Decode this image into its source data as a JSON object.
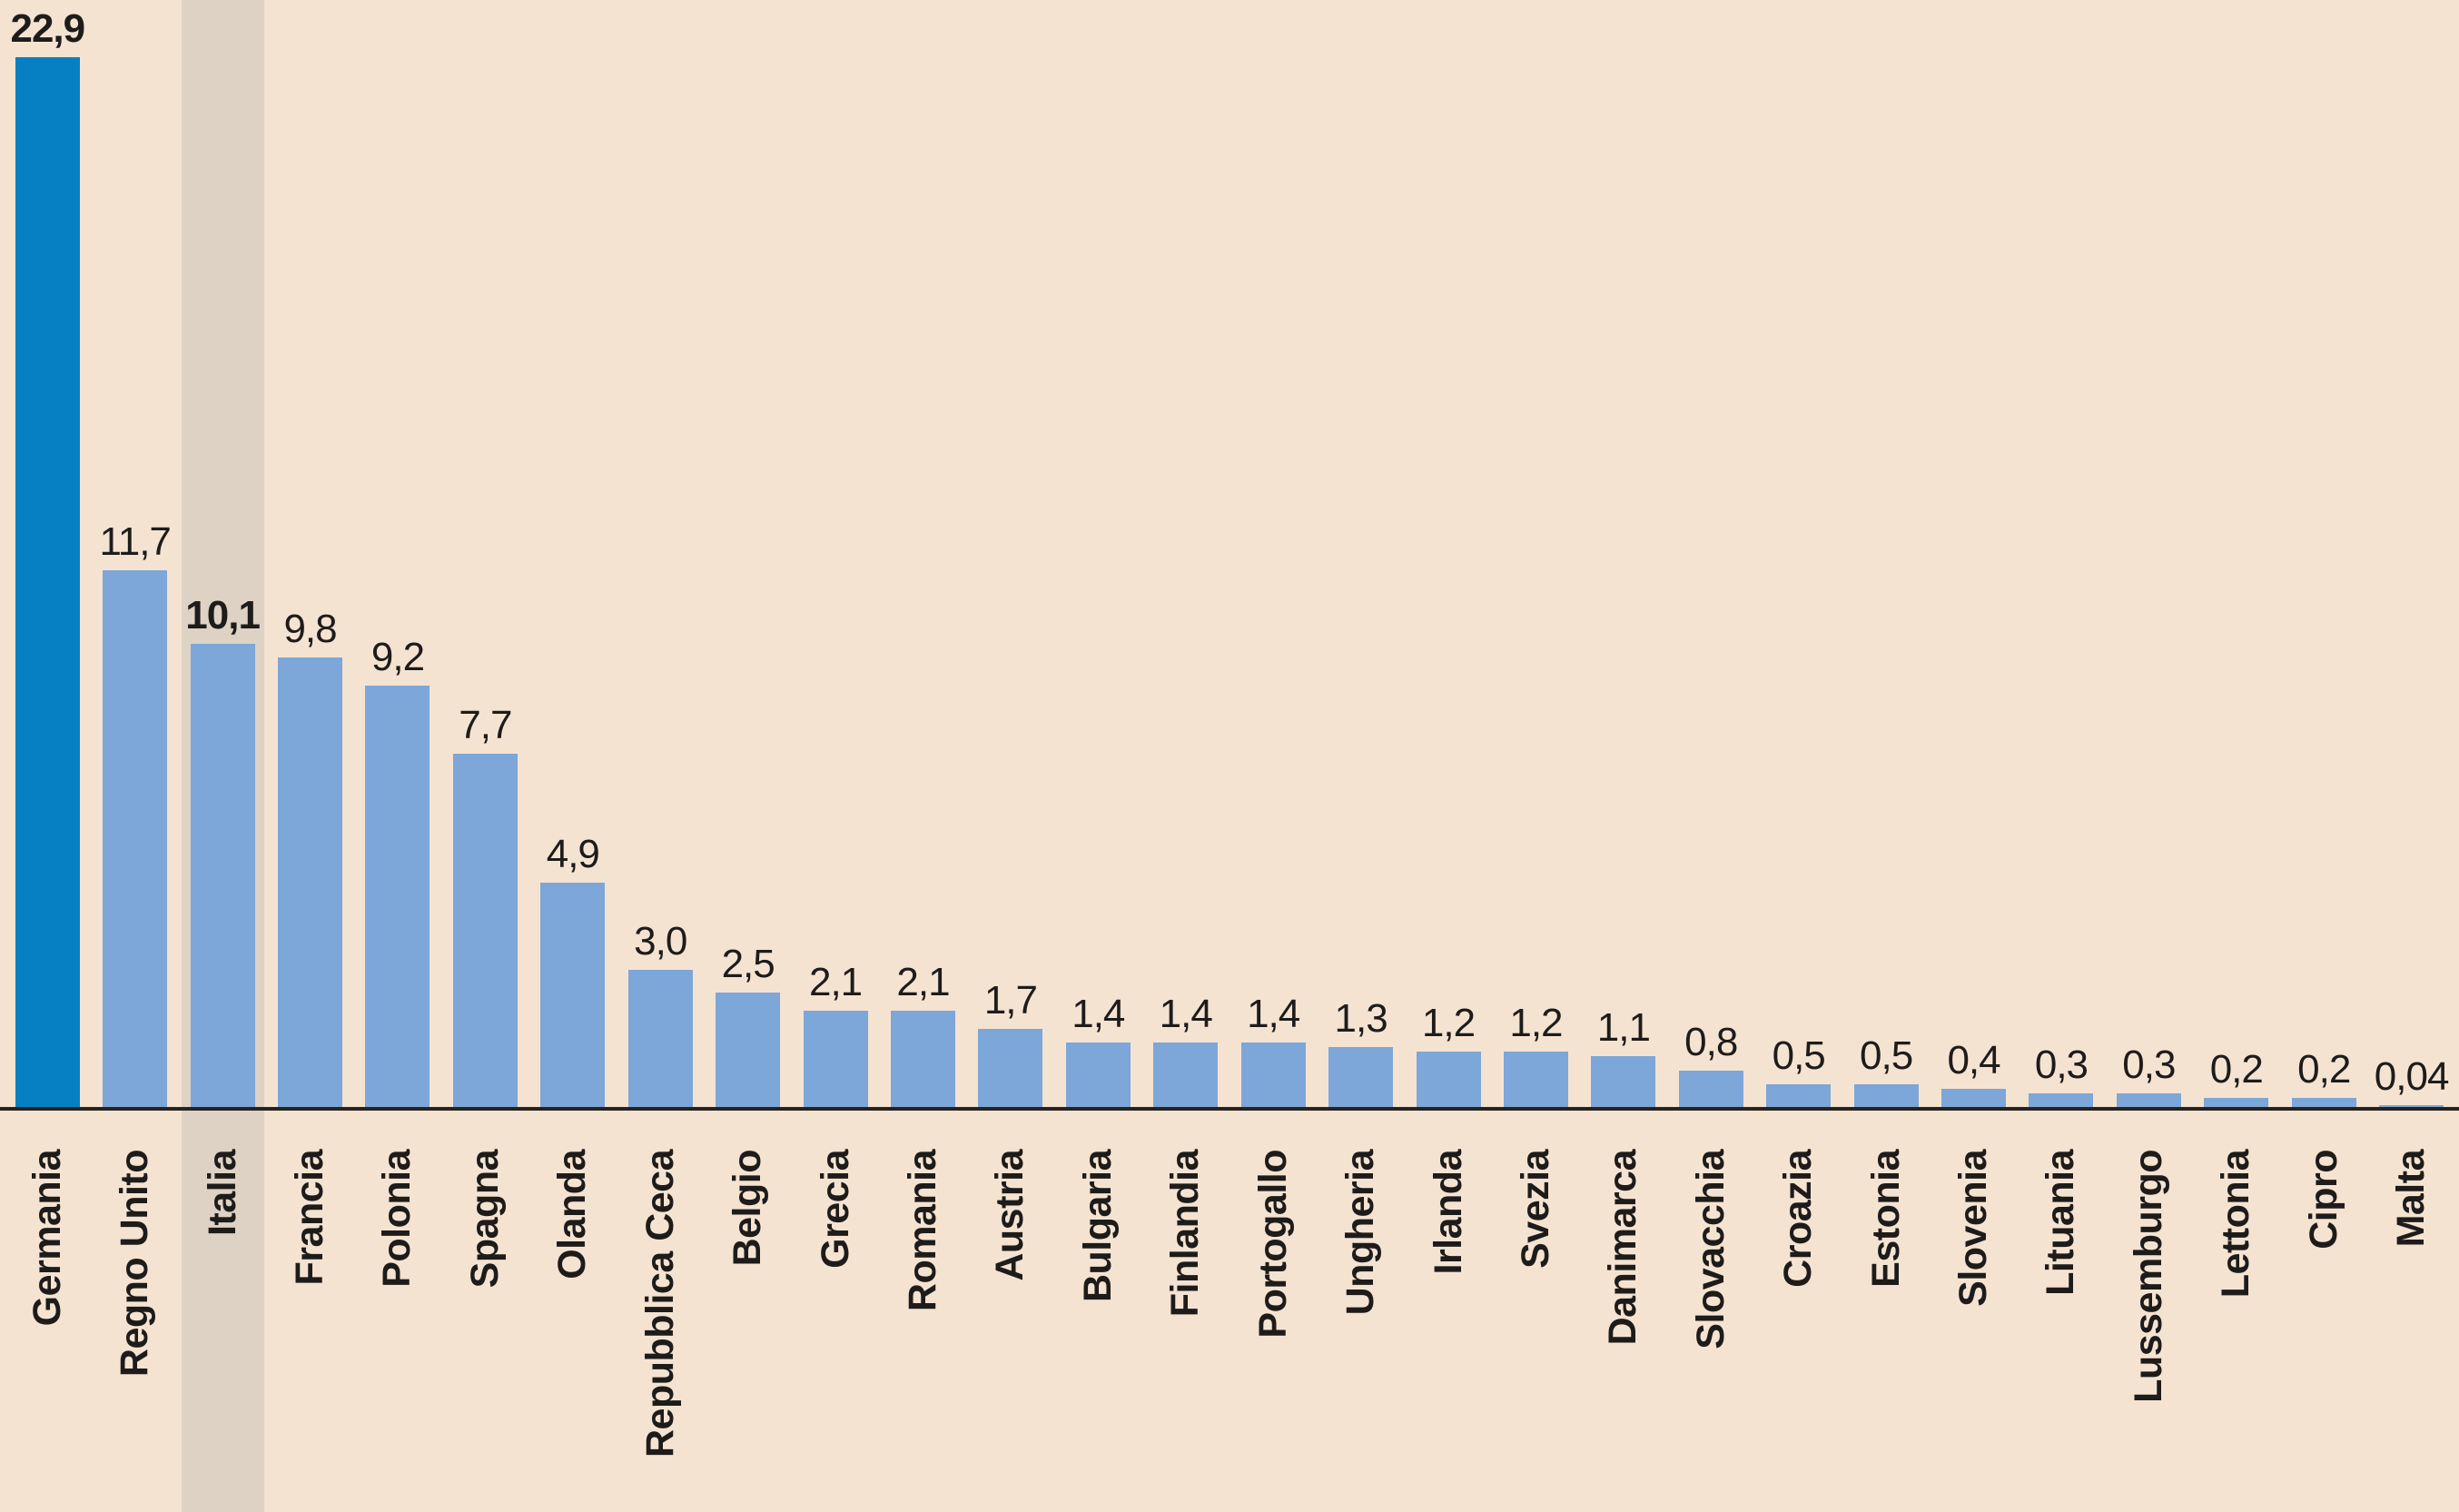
{
  "chart_data": {
    "type": "bar",
    "categories": [
      "Germania",
      "Regno Unito",
      "Italia",
      "Francia",
      "Polonia",
      "Spagna",
      "Olanda",
      "Repubblica Ceca",
      "Belgio",
      "Grecia",
      "Romania",
      "Austria",
      "Bulgaria",
      "Finlandia",
      "Portogallo",
      "Ungheria",
      "Irlanda",
      "Svezia",
      "Danimarca",
      "Slovacchia",
      "Croazia",
      "Estonia",
      "Slovenia",
      "Lituania",
      "Lussemburgo",
      "Lettonia",
      "Cipro",
      "Malta"
    ],
    "values": [
      22.9,
      11.7,
      10.1,
      9.8,
      9.2,
      7.7,
      4.9,
      3.0,
      2.5,
      2.1,
      2.1,
      1.7,
      1.4,
      1.4,
      1.4,
      1.3,
      1.2,
      1.2,
      1.1,
      0.8,
      0.5,
      0.5,
      0.4,
      0.3,
      0.3,
      0.2,
      0.2,
      0.04
    ],
    "display_values": [
      "22,9",
      "11,7",
      "10,1",
      "9,8",
      "9,2",
      "7,7",
      "4,9",
      "3,0",
      "2,5",
      "2,1",
      "2,1",
      "1,7",
      "1,4",
      "1,4",
      "1,4",
      "1,3",
      "1,2",
      "1,2",
      "1,1",
      "0,8",
      "0,5",
      "0,5",
      "0,4",
      "0,3",
      "0,3",
      "0,2",
      "0,2",
      "0,04"
    ],
    "decimal_separator": ",",
    "emphasized_bar": "Germania",
    "highlighted_category": "Italia",
    "bold_value_labels": [
      "Germania",
      "Italia"
    ],
    "ylim": [
      0,
      22.9
    ],
    "grid": false,
    "legend": false,
    "x_labels_rotation_deg": 90
  },
  "colors": {
    "background": "#f5e3d2",
    "bar": "#7da6d9",
    "bar_emphasis": "#0680c2",
    "highlight_band": "#ded2c4",
    "axis_line": "#26231f",
    "text": "#1e1c1a"
  }
}
